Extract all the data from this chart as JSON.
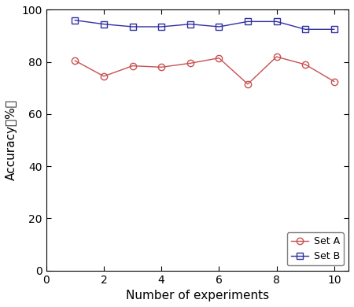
{
  "x": [
    1,
    2,
    3,
    4,
    5,
    6,
    7,
    8,
    9,
    10
  ],
  "set_a": [
    80.5,
    74.5,
    78.5,
    78.0,
    79.5,
    81.5,
    71.5,
    82.0,
    79.0,
    72.5
  ],
  "set_b": [
    96.0,
    94.5,
    93.5,
    93.5,
    94.5,
    93.5,
    95.5,
    95.5,
    92.5,
    92.5
  ],
  "set_a_color": "#c85050",
  "set_b_color": "#3030a0",
  "set_a_label": "Set A",
  "set_b_label": "Set B",
  "xlabel": "Number of experiments",
  "ylabel": "Accuracy（%）",
  "xlim": [
    0,
    10.5
  ],
  "ylim": [
    0,
    100
  ],
  "xticks": [
    0,
    2,
    4,
    6,
    8,
    10
  ],
  "yticks": [
    0,
    20,
    40,
    60,
    80,
    100
  ],
  "background_color": "#ffffff",
  "legend_loc": "lower right",
  "marker_a": "o",
  "marker_b": "s",
  "linewidth": 1.0,
  "markersize": 6,
  "tick_fontsize": 10,
  "label_fontsize": 11
}
